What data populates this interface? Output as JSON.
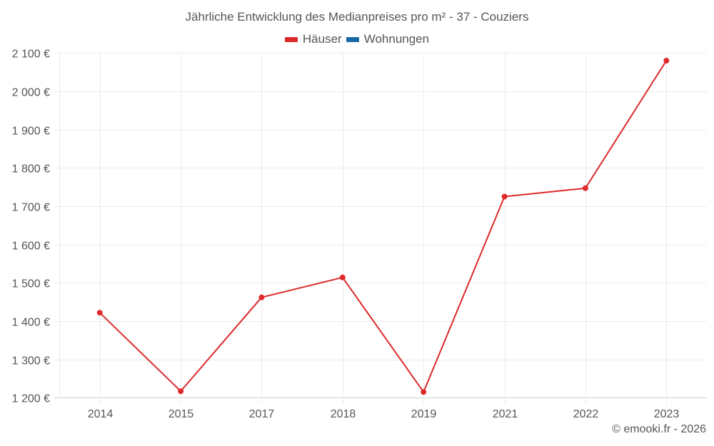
{
  "title": "Jährliche Entwicklung des Medianpreises pro m² - 37 - Couziers",
  "legend": [
    {
      "label": "Häuser",
      "color": "#dd2a2a"
    },
    {
      "label": "Wohnungen",
      "color": "#1a6aa8"
    }
  ],
  "credit": "© emooki.fr - 2026",
  "chart_data": {
    "type": "line",
    "title": "Jährliche Entwicklung des Medianpreises pro m² - 37 - Couziers",
    "xlabel": "",
    "ylabel": "",
    "categories": [
      "2014",
      "2015",
      "2017",
      "2018",
      "2019",
      "2021",
      "2022",
      "2023"
    ],
    "series": [
      {
        "name": "Häuser",
        "color": "#dd2a2a",
        "values": [
          1422,
          1217,
          1462,
          1514,
          1215,
          1725,
          1747,
          2080
        ]
      },
      {
        "name": "Wohnungen",
        "color": "#1a6aa8",
        "values": []
      }
    ],
    "ylim": [
      1200,
      2100
    ],
    "yticks": [
      1200,
      1300,
      1400,
      1500,
      1600,
      1700,
      1800,
      1900,
      2000,
      2100
    ],
    "ytick_labels": [
      "1 200 €",
      "1 300 €",
      "1 400 €",
      "1 500 €",
      "1 600 €",
      "1 700 €",
      "1 800 €",
      "1 900 €",
      "2 000 €",
      "2 100 €"
    ],
    "grid": true,
    "legend_position": "top"
  }
}
